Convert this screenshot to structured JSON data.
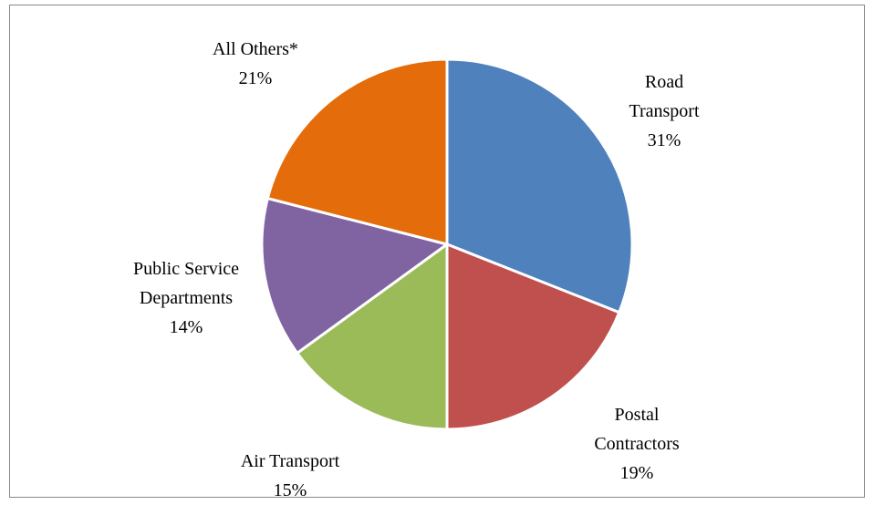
{
  "chart_data": {
    "type": "pie",
    "categories": [
      "Road Transport",
      "Postal Contractors",
      "Air Transport",
      "Public Service Departments",
      "All Others*"
    ],
    "values": [
      31,
      19,
      15,
      14,
      21
    ],
    "value_labels": [
      "31%",
      "19%",
      "15%",
      "14%",
      "21%"
    ],
    "colors": [
      "#4f81bd",
      "#c0504d",
      "#9bbb59",
      "#8064a2",
      "#e46c0a"
    ]
  }
}
